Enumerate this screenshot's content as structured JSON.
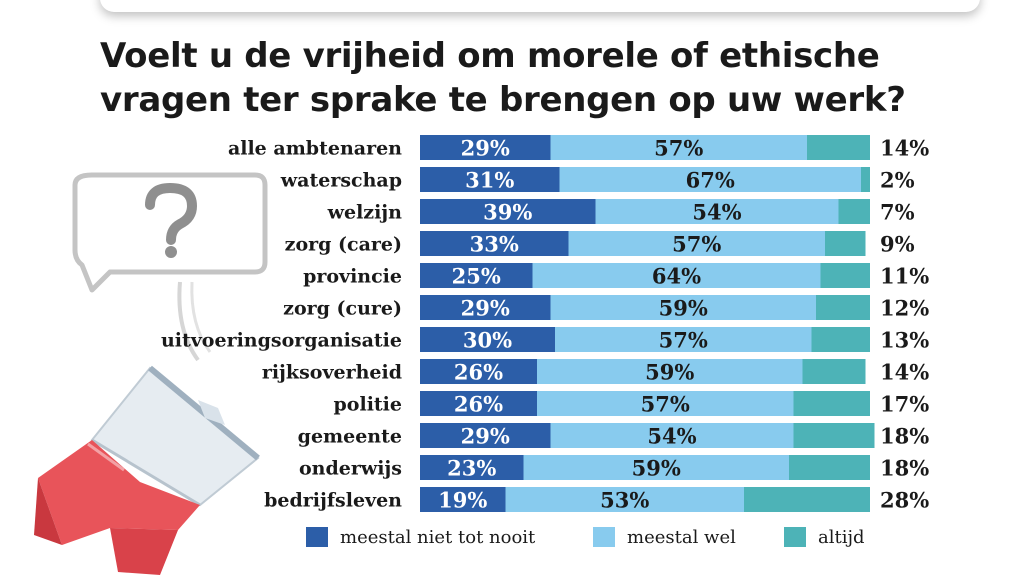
{
  "chart_data": {
    "type": "bar",
    "stacked": true,
    "orientation": "horizontal",
    "title": "Voelt u de vrijheid om morele of ethische vragen ter sprake te brengen op uw werk?",
    "categories": [
      "alle ambtenaren",
      "waterschap",
      "welzijn",
      "zorg (care)",
      "provincie",
      "zorg (cure)",
      "uitvoeringsorganisatie",
      "rijksoverheid",
      "politie",
      "gemeente",
      "onderwijs",
      "bedrijfsleven"
    ],
    "series": [
      {
        "name": "meestal niet tot nooit",
        "color": "#2c5ea8",
        "values": [
          29,
          31,
          39,
          33,
          25,
          29,
          30,
          26,
          26,
          29,
          23,
          19
        ]
      },
      {
        "name": "meestal wel",
        "color": "#88cbee",
        "values": [
          57,
          67,
          54,
          57,
          64,
          59,
          57,
          59,
          57,
          54,
          59,
          53
        ]
      },
      {
        "name": "altijd",
        "color": "#4db3b7",
        "values": [
          14,
          2,
          7,
          9,
          11,
          12,
          13,
          14,
          17,
          18,
          18,
          28
        ]
      }
    ],
    "value_suffix": "%",
    "xlim": [
      0,
      100
    ],
    "legend_position": "bottom"
  }
}
